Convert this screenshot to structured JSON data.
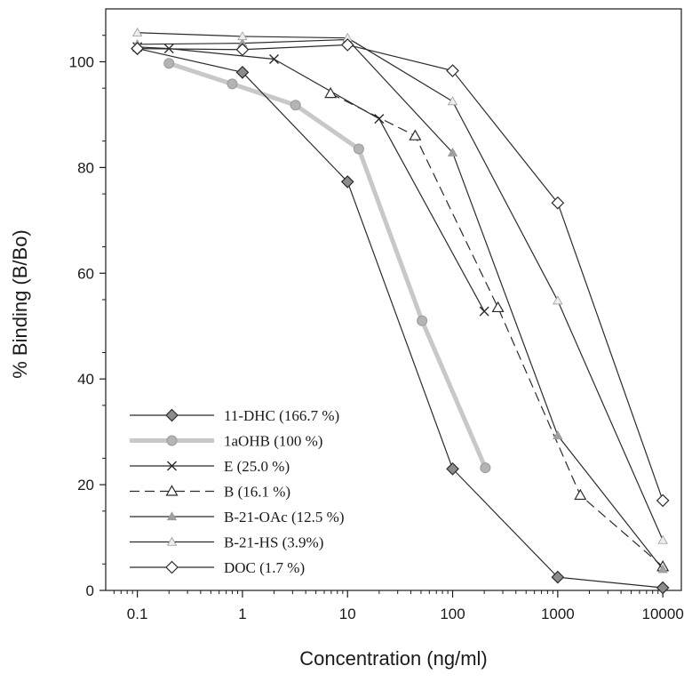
{
  "chart_data": {
    "type": "line",
    "xscale": "log",
    "xlabel": "Concentration (ng/ml)",
    "ylabel": "% Binding (B/Bo)",
    "xlim": [
      0.05,
      15000
    ],
    "ylim": [
      0,
      110
    ],
    "xticks": [
      0.1,
      1,
      10,
      100,
      1000,
      10000
    ],
    "xtick_labels": [
      "0.1",
      "1",
      "10",
      "100",
      "1000",
      "10000"
    ],
    "yticks": [
      0,
      20,
      40,
      60,
      80,
      100
    ],
    "ytick_labels": [
      "0",
      "20",
      "40",
      "60",
      "80",
      "100"
    ],
    "grid": false,
    "legend_position": "bottom-left",
    "series": [
      {
        "name": "11-DHC (166.7 %)",
        "line": "solid",
        "color": "#2b2b2b",
        "width": 1.2,
        "marker": "diamond",
        "marker_fill": "#8c8c8c",
        "x": [
          0.1,
          1,
          10,
          100,
          1000,
          10000
        ],
        "y": [
          102.5,
          98,
          77.3,
          23,
          2.5,
          0.5
        ]
      },
      {
        "name": "1aOHB (100 %)",
        "line": "solid",
        "color": "#c8c8c8",
        "width": 5,
        "marker": "circle",
        "marker_fill": "#b4b4b4",
        "x": [
          0.2,
          0.8,
          3.2,
          12.8,
          51.2,
          204.8
        ],
        "y": [
          99.7,
          95.8,
          91.8,
          83.5,
          51,
          23.2
        ]
      },
      {
        "name": "E (25.0 %)",
        "line": "solid",
        "color": "#2b2b2b",
        "width": 1.2,
        "marker": "x",
        "marker_fill": "none",
        "x": [
          0.1,
          0.2,
          2,
          20,
          200
        ],
        "y": [
          102.8,
          102.5,
          100.5,
          89.2,
          52.8
        ]
      },
      {
        "name": "B (16.1 %)",
        "line": "dashed",
        "color": "#2b2b2b",
        "width": 1.2,
        "marker": "triangle-open",
        "marker_fill": "#ffffff",
        "x": [
          6.9,
          44,
          270,
          1640,
          10000
        ],
        "y": [
          94,
          86,
          53.5,
          18,
          4.5
        ]
      },
      {
        "name": "B-21-OAc (12.5 %)",
        "line": "solid",
        "color": "#2b2b2b",
        "width": 1.2,
        "marker": "triangle",
        "marker_fill": "#a0a0a0",
        "x": [
          0.1,
          1,
          10,
          100,
          1000,
          10000
        ],
        "y": [
          103.3,
          103.5,
          104.2,
          82.8,
          29.3,
          4
        ]
      },
      {
        "name": "B-21-HS (3.9%)",
        "line": "solid",
        "color": "#2b2b2b",
        "width": 1.2,
        "marker": "triangle",
        "marker_fill": "#eeeeee",
        "x": [
          0.1,
          1,
          10,
          100,
          1000,
          10000
        ],
        "y": [
          105.5,
          104.8,
          104.5,
          92.5,
          54.8,
          9.5
        ]
      },
      {
        "name": "DOC (1.7 %)",
        "line": "solid",
        "color": "#2b2b2b",
        "width": 1.2,
        "marker": "diamond",
        "marker_fill": "#ffffff",
        "x": [
          0.1,
          1,
          10,
          100,
          1000,
          10000
        ],
        "y": [
          102.5,
          102.3,
          103.2,
          98.3,
          73.3,
          17
        ]
      }
    ]
  }
}
